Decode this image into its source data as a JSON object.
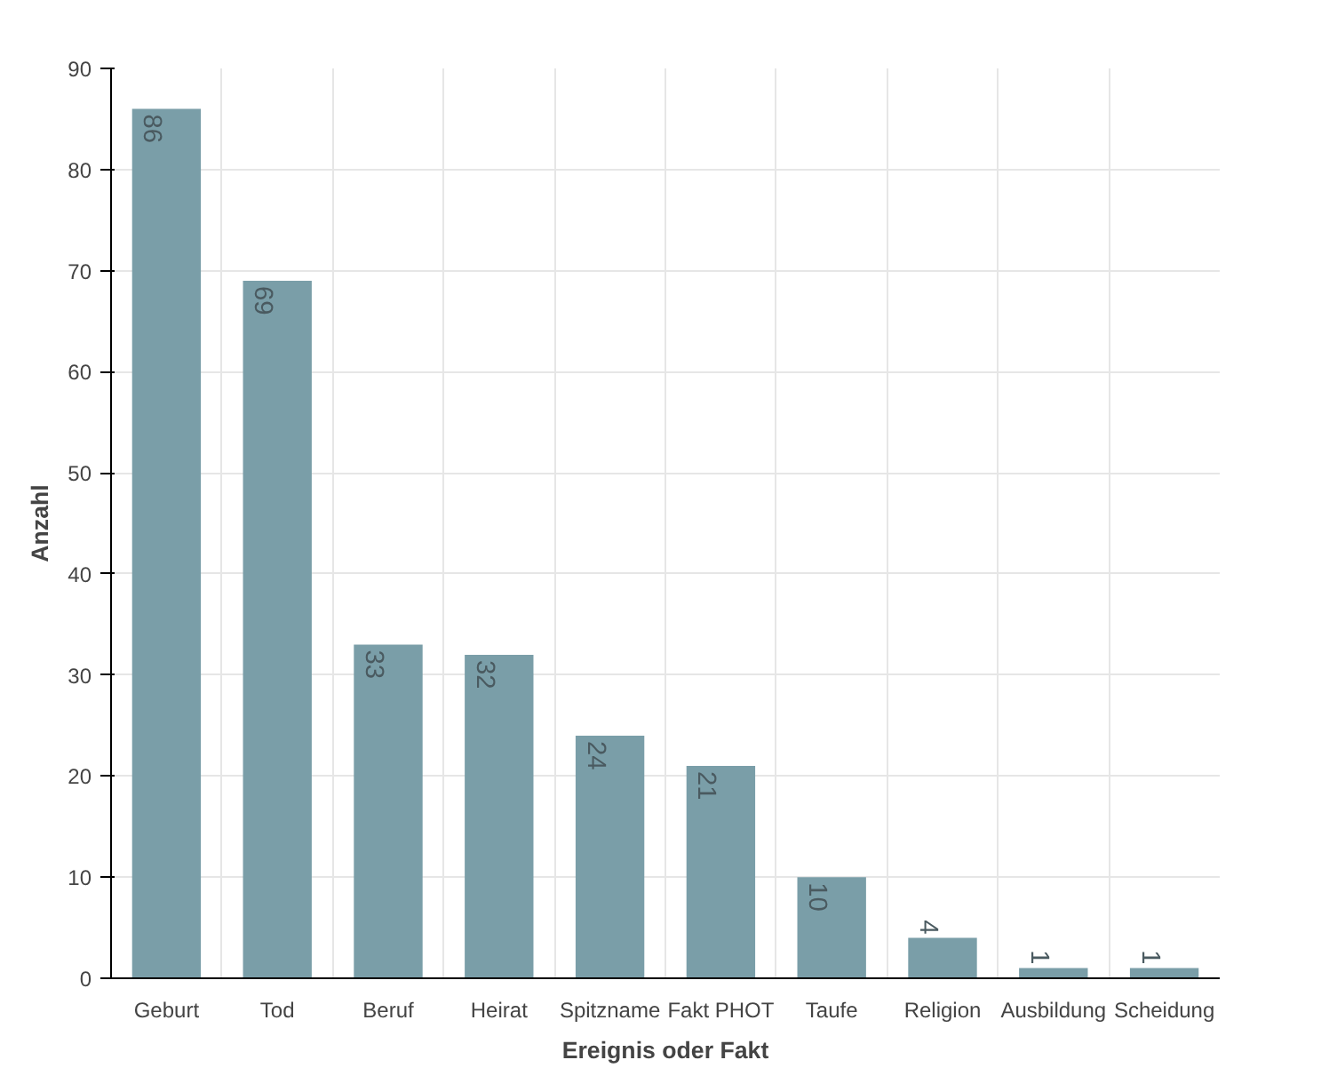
{
  "chart_data": {
    "type": "bar",
    "xlabel": "Ereignis oder Fakt",
    "ylabel": "Anzahl",
    "categories": [
      "Geburt",
      "Tod",
      "Beruf",
      "Heirat",
      "Spitzname",
      "Fakt PHOT",
      "Taufe",
      "Religion",
      "Ausbildung",
      "Scheidung"
    ],
    "values": [
      86,
      69,
      33,
      32,
      24,
      21,
      10,
      4,
      1,
      1
    ],
    "color": "#7a9ea8",
    "ylim": [
      0,
      90
    ],
    "yticks": [
      0,
      10,
      20,
      30,
      40,
      50,
      60,
      70,
      80,
      90
    ],
    "grid": true,
    "data_labels": true
  }
}
